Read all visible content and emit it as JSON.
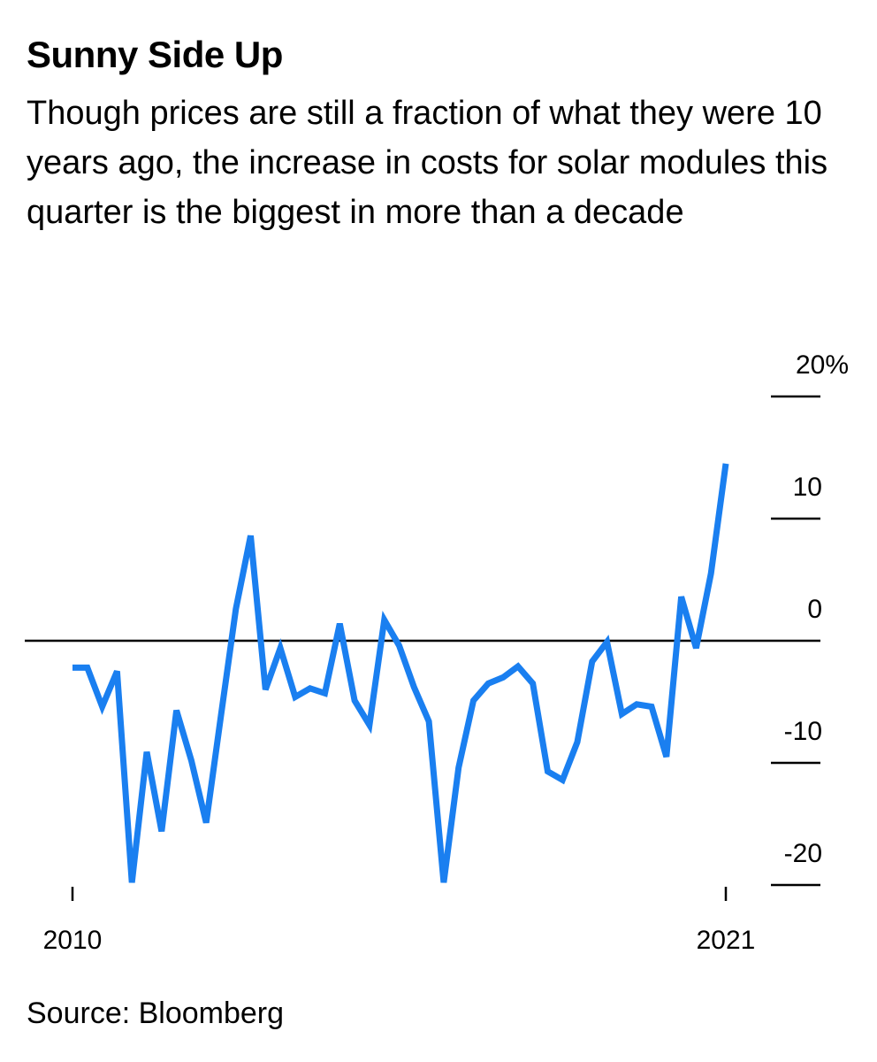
{
  "header": {
    "title": "Sunny Side Up",
    "subtitle": "Though prices are still a fraction of what they were 10 years ago, the increase in costs for solar modules this quarter is the biggest in more than a decade"
  },
  "footer": {
    "source": "Source: Bloomberg"
  },
  "colors": {
    "line": "#1a7ff0",
    "axis": "#000000"
  },
  "chart_data": {
    "type": "line",
    "title": "Sunny Side Up",
    "xlabel": "",
    "ylabel": "",
    "x_range": [
      2010,
      2021
    ],
    "ylim": [
      -20,
      20
    ],
    "y_ticks": [
      {
        "value": 20,
        "label": "20%"
      },
      {
        "value": 10,
        "label": "10"
      },
      {
        "value": 0,
        "label": "0"
      },
      {
        "value": -10,
        "label": "-10"
      },
      {
        "value": -20,
        "label": "-20"
      }
    ],
    "x_ticks": [
      {
        "value": 2010,
        "label": "2010"
      },
      {
        "value": 2021,
        "label": "2021"
      }
    ],
    "grid": false,
    "zero_line": true,
    "series": [
      {
        "values": [
          [
            2010.0,
            -2.2
          ],
          [
            2010.25,
            -2.2
          ],
          [
            2010.5,
            -5.4
          ],
          [
            2010.75,
            -2.5
          ],
          [
            2011.0,
            -19.8
          ],
          [
            2011.25,
            -9.1
          ],
          [
            2011.5,
            -15.6
          ],
          [
            2011.75,
            -5.7
          ],
          [
            2012.0,
            -9.8
          ],
          [
            2012.25,
            -14.9
          ],
          [
            2012.5,
            -6.1
          ],
          [
            2012.75,
            2.6
          ],
          [
            2013.0,
            8.6
          ],
          [
            2013.25,
            -4.0
          ],
          [
            2013.5,
            -0.6
          ],
          [
            2013.75,
            -4.6
          ],
          [
            2014.0,
            -3.9
          ],
          [
            2014.25,
            -4.3
          ],
          [
            2014.5,
            1.4
          ],
          [
            2014.75,
            -4.9
          ],
          [
            2015.0,
            -6.9
          ],
          [
            2015.25,
            1.7
          ],
          [
            2015.5,
            -0.4
          ],
          [
            2015.75,
            -3.8
          ],
          [
            2016.0,
            -6.6
          ],
          [
            2016.25,
            -19.8
          ],
          [
            2016.5,
            -10.4
          ],
          [
            2016.75,
            -4.9
          ],
          [
            2017.0,
            -3.5
          ],
          [
            2017.25,
            -3.0
          ],
          [
            2017.5,
            -2.1
          ],
          [
            2017.75,
            -3.5
          ],
          [
            2018.0,
            -10.7
          ],
          [
            2018.25,
            -11.4
          ],
          [
            2018.5,
            -8.3
          ],
          [
            2018.75,
            -1.7
          ],
          [
            2019.0,
            -0.1
          ],
          [
            2019.25,
            -6.0
          ],
          [
            2019.5,
            -5.2
          ],
          [
            2019.75,
            -5.4
          ],
          [
            2020.0,
            -9.5
          ],
          [
            2020.25,
            3.6
          ],
          [
            2020.5,
            -0.6
          ],
          [
            2020.75,
            5.5
          ],
          [
            2021.0,
            14.5
          ]
        ]
      }
    ]
  }
}
